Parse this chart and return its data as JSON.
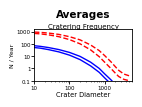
{
  "title1": "Averages",
  "title2": "Cratering Frequency",
  "xlabel": "Crater Diameter",
  "ylabel": "N / Year",
  "xlim": [
    10,
    6000
  ],
  "ylim": [
    0.1,
    1500
  ],
  "xscale": "log",
  "yscale": "log",
  "bg_color": "#ffffff",
  "red_upper": {
    "x": [
      10,
      15,
      25,
      50,
      100,
      200,
      400,
      700,
      1000,
      1500,
      2000,
      2500,
      3500,
      5000
    ],
    "y": [
      900,
      850,
      750,
      580,
      380,
      210,
      80,
      28,
      11,
      3.5,
      1.4,
      0.7,
      0.35,
      0.25
    ],
    "color": "#ff0000",
    "ls": "--",
    "lw": 1.0
  },
  "red_lower": {
    "x": [
      10,
      15,
      25,
      50,
      100,
      200,
      400,
      700,
      1000,
      1500,
      2000,
      2500,
      3500,
      5000
    ],
    "y": [
      700,
      640,
      540,
      380,
      220,
      100,
      32,
      9,
      3.2,
      1.0,
      0.42,
      0.22,
      0.13,
      0.1
    ],
    "color": "#ff0000",
    "ls": "--",
    "lw": 1.0
  },
  "blue_upper": {
    "x": [
      10,
      15,
      25,
      50,
      100,
      200,
      400,
      700,
      1000,
      1500,
      2000,
      2500
    ],
    "y": [
      70,
      62,
      50,
      34,
      20,
      9.5,
      3.2,
      1.0,
      0.36,
      0.12,
      0.05,
      0.022
    ],
    "color": "#0000ff",
    "ls": "-",
    "lw": 1.0
  },
  "blue_lower": {
    "x": [
      10,
      15,
      25,
      50,
      100,
      200,
      400,
      700,
      1000,
      1500,
      2000,
      2500
    ],
    "y": [
      50,
      44,
      34,
      22,
      12,
      5.2,
      1.6,
      0.48,
      0.17,
      0.055,
      0.025,
      0.012
    ],
    "color": "#0000ff",
    "ls": "-",
    "lw": 1.0
  },
  "xticks": [
    10,
    100,
    1000
  ],
  "xtick_labels": [
    "10",
    "100",
    "1000"
  ],
  "yticks": [
    0.1,
    1,
    10,
    100,
    1000
  ],
  "ytick_labels": [
    "0.1",
    "1",
    "10",
    "100",
    "1000"
  ]
}
